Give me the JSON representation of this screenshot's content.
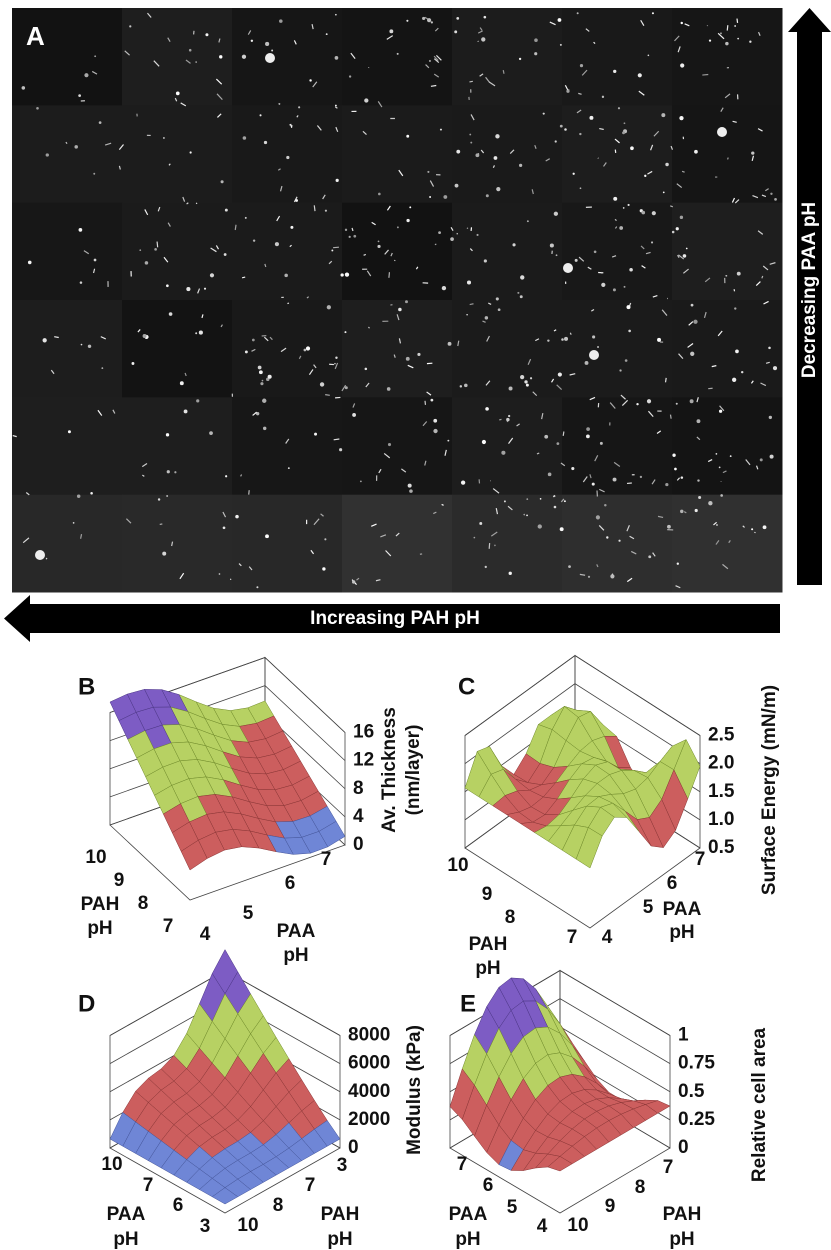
{
  "panel_a": {
    "label": "A",
    "vertical_arrow_label": "Decreasing PAA pH",
    "horizontal_arrow_label": "Increasing PAH pH"
  },
  "panels": [
    {
      "label": "B",
      "z_axis_title": [
        "Av. Thickness",
        "(nm/layer)"
      ],
      "z_ticks": [
        "16",
        "12",
        "8",
        "4",
        "0"
      ],
      "left_ticks": [
        "10",
        "9",
        "8",
        "7"
      ],
      "left_axis_title": [
        "PAH",
        "pH"
      ],
      "right_ticks": [
        "4",
        "5",
        "6",
        "7"
      ],
      "right_axis_title": [
        "PAA",
        "pH"
      ]
    },
    {
      "label": "C",
      "z_axis_title": [
        "Surface Energy (mN/m)"
      ],
      "z_ticks": [
        "2.5",
        "2.0",
        "1.5",
        "1.0",
        "0.5"
      ],
      "left_ticks": [
        "10",
        "9",
        "8",
        "7"
      ],
      "left_axis_title": [
        "PAH",
        "pH"
      ],
      "right_ticks": [
        "4",
        "5",
        "6",
        "7"
      ],
      "right_axis_title": [
        "PAA",
        "pH"
      ]
    },
    {
      "label": "D",
      "z_axis_title": [
        "Modulus (kPa)"
      ],
      "z_ticks": [
        "8000",
        "6000",
        "4000",
        "2000",
        "0"
      ],
      "left_ticks": [
        "10",
        "7",
        "6",
        "3"
      ],
      "left_axis_title": [
        "PAA",
        "pH"
      ],
      "right_ticks": [
        "10",
        "8",
        "7",
        "3"
      ],
      "right_axis_title": [
        "PAH",
        "pH"
      ]
    },
    {
      "label": "E",
      "z_axis_title": [
        "Relative cell area"
      ],
      "z_ticks": [
        "1",
        "0.75",
        "0.5",
        "0.25",
        "0"
      ],
      "left_ticks": [
        "7",
        "6",
        "5",
        "4"
      ],
      "left_axis_title": [
        "PAA",
        "pH"
      ],
      "right_ticks": [
        "10",
        "9",
        "8",
        "7"
      ],
      "right_axis_title": [
        "PAH",
        "pH"
      ]
    }
  ]
}
